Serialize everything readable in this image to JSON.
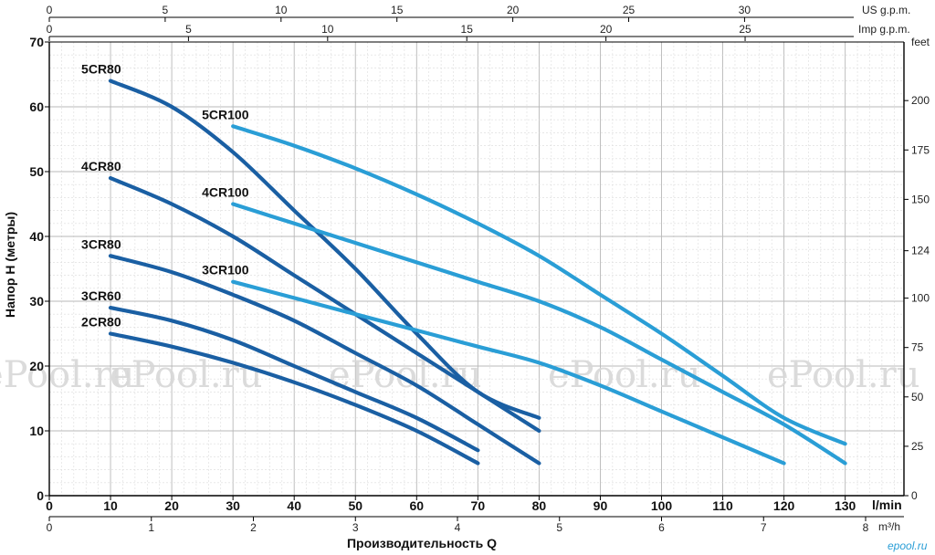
{
  "chart_data": {
    "type": "line",
    "ylabel": "Напор H (метры)",
    "xlabel": "Производительность Q",
    "x_unit_lmin": "l/min",
    "x_unit_m3h": "m³/h",
    "y_unit_feet": "feet",
    "top_unit_us": "US g.p.m.",
    "top_unit_imp": "Imp g.p.m.",
    "xlim": [
      0,
      140
    ],
    "ylim": [
      0,
      70
    ],
    "grid": true,
    "x_ticks_lmin": [
      "0",
      "10",
      "20",
      "30",
      "40",
      "50",
      "60",
      "70",
      "80",
      "90",
      "100",
      "110",
      "120",
      "130"
    ],
    "y_ticks_m": [
      "0",
      "10",
      "20",
      "30",
      "40",
      "50",
      "60",
      "70"
    ],
    "m3h_ticks": [
      "0",
      "1",
      "2",
      "3",
      "4",
      "5",
      "6",
      "7",
      "8"
    ],
    "us_gpm_ticks": [
      "0",
      "5",
      "10",
      "15",
      "20",
      "25",
      "30"
    ],
    "imp_gpm_ticks": [
      "0",
      "5",
      "10",
      "15",
      "20",
      "25"
    ],
    "feet_ticks": [
      "0",
      "25",
      "50",
      "75",
      "100",
      "124",
      "150",
      "175",
      "200"
    ],
    "series": [
      {
        "name": "5CR80",
        "color": "#1a5fa3",
        "x": [
          10,
          20,
          30,
          40,
          50,
          60,
          70,
          80
        ],
        "y": [
          64,
          60,
          53,
          44,
          35,
          25,
          16,
          12
        ]
      },
      {
        "name": "4CR80",
        "color": "#1a5fa3",
        "x": [
          10,
          20,
          30,
          40,
          50,
          60,
          70,
          80
        ],
        "y": [
          49,
          45,
          40,
          34,
          28,
          22,
          16,
          10
        ]
      },
      {
        "name": "3CR80",
        "color": "#1a5fa3",
        "x": [
          10,
          20,
          30,
          40,
          50,
          60,
          70,
          80
        ],
        "y": [
          37,
          34.5,
          31,
          27,
          22,
          17,
          11,
          5
        ]
      },
      {
        "name": "3CR60",
        "color": "#1a5fa3",
        "x": [
          10,
          20,
          30,
          40,
          50,
          60,
          70
        ],
        "y": [
          29,
          27,
          24,
          20,
          16,
          12,
          7
        ]
      },
      {
        "name": "2CR80",
        "color": "#1a5fa3",
        "x": [
          10,
          20,
          30,
          40,
          50,
          60,
          70
        ],
        "y": [
          25,
          23,
          20.5,
          17.5,
          14,
          10,
          5
        ]
      },
      {
        "name": "5CR100",
        "color": "#2a9ed6",
        "x": [
          30,
          40,
          50,
          60,
          70,
          80,
          90,
          100,
          110,
          120,
          130
        ],
        "y": [
          57,
          54,
          50.5,
          46.5,
          42,
          37,
          31,
          25,
          18.5,
          12,
          8
        ]
      },
      {
        "name": "4CR100",
        "color": "#2a9ed6",
        "x": [
          30,
          40,
          50,
          60,
          70,
          80,
          90,
          100,
          110,
          120,
          130
        ],
        "y": [
          45,
          42,
          39,
          36,
          33,
          30,
          26,
          21,
          16,
          11,
          5
        ]
      },
      {
        "name": "3CR100",
        "color": "#2a9ed6",
        "x": [
          30,
          40,
          50,
          60,
          70,
          80,
          90,
          100,
          110,
          120
        ],
        "y": [
          33,
          30.5,
          28,
          25.5,
          23,
          20.5,
          17,
          13,
          9,
          5
        ]
      }
    ]
  },
  "watermark": "ePool.ru",
  "logo": "epool.ru"
}
